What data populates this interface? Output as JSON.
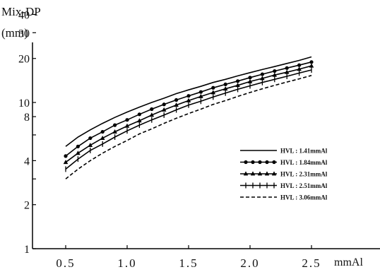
{
  "chart_data": {
    "type": "line",
    "ylabel": "Mix-DP",
    "yunit": "(mm)",
    "xunit": "mmAl",
    "xscale": "linear",
    "yscale": "log",
    "xlim": [
      0.2,
      2.6
    ],
    "ylim": [
      1,
      60
    ],
    "grid": false,
    "legend_position": "right",
    "xticks": [
      0.5,
      1.0,
      1.5,
      2.0,
      2.5
    ],
    "xtick_labels": [
      "0.5",
      "1.0",
      "1.5",
      "2.0",
      "2.5"
    ],
    "yticks_labeled": [
      1,
      2,
      4,
      8,
      10,
      20,
      30,
      40
    ],
    "yticks_minor": [
      3,
      6
    ],
    "x": [
      0.5,
      0.6,
      0.7,
      0.8,
      0.9,
      1.0,
      1.1,
      1.2,
      1.3,
      1.4,
      1.5,
      1.6,
      1.7,
      1.8,
      1.9,
      2.0,
      2.1,
      2.2,
      2.3,
      2.4,
      2.5
    ],
    "series": [
      {
        "name": "HVL : 1.41mmAl",
        "marker": "none",
        "dash": "solid",
        "values": [
          5.0,
          5.8,
          6.5,
          7.2,
          7.9,
          8.6,
          9.3,
          10.0,
          10.7,
          11.5,
          12.2,
          12.9,
          13.7,
          14.4,
          15.2,
          16.0,
          16.8,
          17.6,
          18.5,
          19.4,
          20.5
        ]
      },
      {
        "name": "HVL : 1.84mmAl",
        "marker": "dot",
        "dash": "solid",
        "values": [
          4.3,
          5.0,
          5.7,
          6.3,
          7.0,
          7.6,
          8.3,
          9.0,
          9.7,
          10.4,
          11.1,
          11.8,
          12.6,
          13.3,
          14.0,
          14.8,
          15.6,
          16.4,
          17.2,
          18.0,
          18.9
        ]
      },
      {
        "name": "HVL : 2.31mmAl",
        "marker": "triangle",
        "dash": "solid",
        "values": [
          3.9,
          4.5,
          5.1,
          5.7,
          6.3,
          6.9,
          7.5,
          8.2,
          8.9,
          9.6,
          10.3,
          11.0,
          11.7,
          12.4,
          13.1,
          13.9,
          14.6,
          15.4,
          16.1,
          16.9,
          17.8
        ]
      },
      {
        "name": "HVL : 2.51mmAl",
        "marker": "plus",
        "dash": "solid",
        "values": [
          3.5,
          4.1,
          4.7,
          5.2,
          5.8,
          6.4,
          7.0,
          7.6,
          8.2,
          8.9,
          9.6,
          10.2,
          10.9,
          11.6,
          12.3,
          13.0,
          13.7,
          14.4,
          15.1,
          15.9,
          16.7
        ]
      },
      {
        "name": "HVL : 3.06mmAl",
        "marker": "none",
        "dash": "dashed",
        "values": [
          3.0,
          3.5,
          4.0,
          4.5,
          5.0,
          5.5,
          6.1,
          6.6,
          7.2,
          7.8,
          8.4,
          9.0,
          9.7,
          10.3,
          11.0,
          11.7,
          12.4,
          13.1,
          13.8,
          14.5,
          15.3
        ]
      }
    ]
  }
}
